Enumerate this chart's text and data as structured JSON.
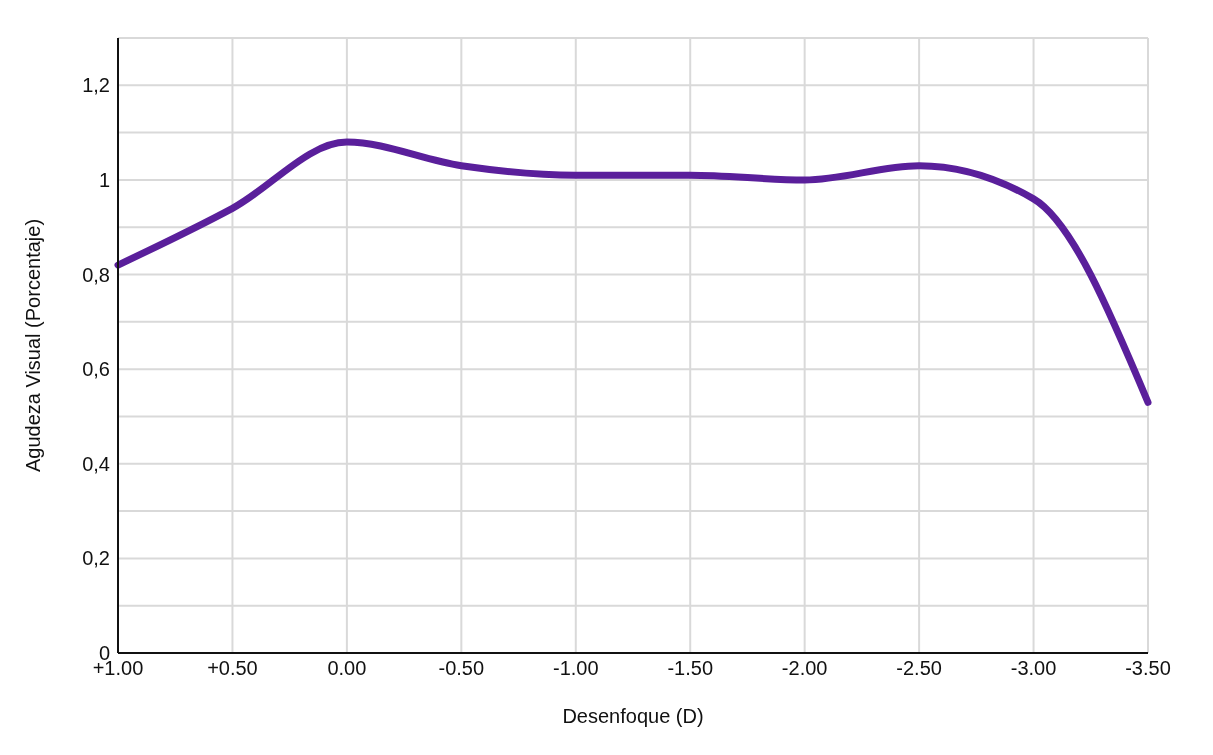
{
  "chart_data": {
    "type": "line",
    "xlabel": "Desenfoque (D)",
    "ylabel": "Agudeza Visual (Porcentaje)",
    "categories": [
      "+1.00",
      "+0.50",
      "0.00",
      "-0.50",
      "-1.00",
      "-1.50",
      "-2.00",
      "-2.50",
      "-3.00",
      "-3.50"
    ],
    "series": [
      {
        "color": "#5a1f9b",
        "values": [
          0.82,
          0.94,
          1.08,
          1.03,
          1.01,
          1.01,
          1.0,
          1.03,
          0.96,
          0.53
        ]
      }
    ],
    "ylim": [
      0,
      1.3
    ],
    "yticks": [
      {
        "value": 0,
        "label": "0"
      },
      {
        "value": 0.1,
        "label": null
      },
      {
        "value": 0.2,
        "label": "0,2"
      },
      {
        "value": 0.3,
        "label": null
      },
      {
        "value": 0.4,
        "label": "0,4"
      },
      {
        "value": 0.5,
        "label": null
      },
      {
        "value": 0.6,
        "label": "0,6"
      },
      {
        "value": 0.7,
        "label": null
      },
      {
        "value": 0.8,
        "label": "0,8"
      },
      {
        "value": 0.9,
        "label": null
      },
      {
        "value": 1,
        "label": "1"
      },
      {
        "value": 1.1,
        "label": null
      },
      {
        "value": 1.2,
        "label": "1,2"
      }
    ],
    "grid": true,
    "legend": false,
    "marker": "none",
    "line_style": "solid"
  }
}
